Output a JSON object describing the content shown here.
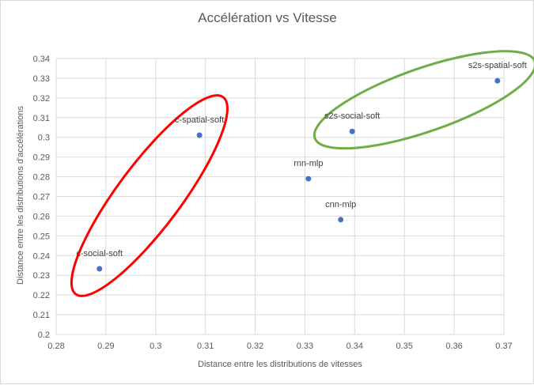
{
  "chart_data": {
    "type": "scatter",
    "title": "Accélération vs Vitesse",
    "xlabel": "Distance entre  les distributions de vitesses",
    "ylabel": "Distance entre  les distributions d'accélérations",
    "xlim": [
      0.28,
      0.37
    ],
    "ylim": [
      0.2,
      0.34
    ],
    "x_ticks": [
      0.28,
      0.29,
      0.3,
      0.31,
      0.32,
      0.33,
      0.34,
      0.35,
      0.36,
      0.37
    ],
    "x_tick_labels": [
      "0.28",
      "0.29",
      "0.3",
      "0.31",
      "0.32",
      "0.33",
      "0.34",
      "0.35",
      "0.36",
      "0.37"
    ],
    "y_ticks": [
      0.2,
      0.21,
      0.22,
      0.23,
      0.24,
      0.25,
      0.26,
      0.27,
      0.28,
      0.29,
      0.3,
      0.31,
      0.32,
      0.33,
      0.34
    ],
    "y_tick_labels": [
      "0.2",
      "0.21",
      "0.22",
      "0.23",
      "0.24",
      "0.25",
      "0.26",
      "0.27",
      "0.28",
      "0.29",
      "0.3",
      "0.31",
      "0.32",
      "0.33",
      "0.34"
    ],
    "grid": true,
    "marker_color": "#4472c4",
    "points": [
      {
        "label": "c-social-soft",
        "x": 0.2887,
        "y": 0.2333
      },
      {
        "label": "c-spatial-soft",
        "x": 0.3088,
        "y": 0.3011
      },
      {
        "label": "rnn-mlp",
        "x": 0.3307,
        "y": 0.279
      },
      {
        "label": "cnn-mlp",
        "x": 0.3372,
        "y": 0.2582
      },
      {
        "label": "s2s-social-soft",
        "x": 0.3395,
        "y": 0.303
      },
      {
        "label": "s2s-spatial-soft",
        "x": 0.3687,
        "y": 0.3287
      }
    ],
    "annotations": [
      {
        "type": "ellipse",
        "color": "#ff0000",
        "encloses": [
          "c-social-soft",
          "c-spatial-soft"
        ]
      },
      {
        "type": "ellipse",
        "color": "#70ad47",
        "encloses": [
          "s2s-social-soft",
          "s2s-spatial-soft"
        ]
      }
    ]
  }
}
